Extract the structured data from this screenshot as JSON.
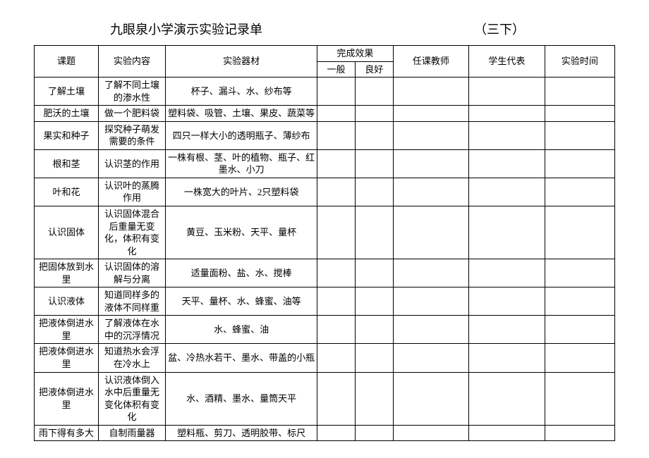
{
  "title": "九眼泉小学演示实验记录单",
  "subtitle": "（三下）",
  "headers": {
    "topic": "课题",
    "content": "实验内容",
    "equipment": "实验器材",
    "effect": "完成效果",
    "effect_normal": "一般",
    "effect_good": "良好",
    "teacher": "任课教师",
    "student": "学生代表",
    "time": "实验时间"
  },
  "rows": [
    {
      "topic": "了解土壤",
      "content": "了解不同土壤的渗水性",
      "equipment": "杯子、漏斗、水、纱布等",
      "eff1": "",
      "eff2": "",
      "teacher": "",
      "student": "",
      "time": ""
    },
    {
      "topic": "肥沃的土壤",
      "content": "做一个肥料袋",
      "equipment": "塑料袋、吸管、土壤、果皮、蔬菜等",
      "eff1": "",
      "eff2": "",
      "teacher": "",
      "student": "",
      "time": ""
    },
    {
      "topic": "果实和种子",
      "content": "探究种子萌发需要的条件",
      "equipment": "四只一样大小的透明瓶子、薄纱布",
      "eff1": "",
      "eff2": "",
      "teacher": "",
      "student": "",
      "time": ""
    },
    {
      "topic": "根和茎",
      "content": "认识茎的作用",
      "equipment": "一株有根、茎、叶的植物、瓶子、红墨水、小刀",
      "eff1": "",
      "eff2": "",
      "teacher": "",
      "student": "",
      "time": ""
    },
    {
      "topic": "叶和花",
      "content": "认识叶的蒸腾作用",
      "equipment": "一株宽大的叶片、2只塑料袋",
      "eff1": "",
      "eff2": "",
      "teacher": "",
      "student": "",
      "time": ""
    },
    {
      "topic": "认识固体",
      "content": "认识固体混合后重量无变化，体积有变化",
      "equipment": "黄豆、玉米粉、天平、量杯",
      "eff1": "",
      "eff2": "",
      "teacher": "",
      "student": "",
      "time": ""
    },
    {
      "topic": "把固体放到水里",
      "content": "认识固体的溶解与分离",
      "equipment": "适量面粉、盐、水、搅棒",
      "eff1": "",
      "eff2": "",
      "teacher": "",
      "student": "",
      "time": ""
    },
    {
      "topic": "认识液体",
      "content": "知道同样多的液体不同样重",
      "equipment": "天平、量杯、水、蜂蜜、油等",
      "eff1": "",
      "eff2": "",
      "teacher": "",
      "student": "",
      "time": ""
    },
    {
      "topic": "把液体倒进水里",
      "content": "了解液体在水中的沉浮情况",
      "equipment": "水、蜂蜜、油",
      "eff1": "",
      "eff2": "",
      "teacher": "",
      "student": "",
      "time": ""
    },
    {
      "topic": "把液体倒进水里",
      "content": "知道热水会浮在冷水上",
      "equipment": "盆、冷热水若干、墨水、带盖的小瓶",
      "eff1": "",
      "eff2": "",
      "teacher": "",
      "student": "",
      "time": ""
    },
    {
      "topic": "把液体倒进水里",
      "content": "认识液体倒入水中后重量无变化体积有变化",
      "equipment": "水、酒精、墨水、量筒天平",
      "eff1": "",
      "eff2": "",
      "teacher": "",
      "student": "",
      "time": ""
    },
    {
      "topic": "雨下得有多大",
      "content": "自制雨量器",
      "equipment": "塑料瓶、剪刀、透明胶带、标尺",
      "eff1": "",
      "eff2": "",
      "teacher": "",
      "student": "",
      "time": ""
    }
  ]
}
